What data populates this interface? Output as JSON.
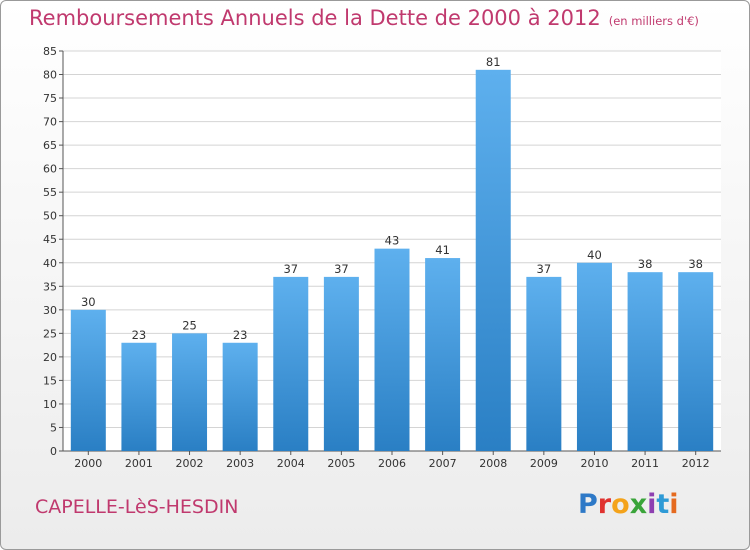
{
  "header": {
    "title": "Remboursements Annuels de la Dette de 2000 à 2012",
    "unit": "(en milliers d'€)"
  },
  "footer": {
    "commune": "CAPELLE-LèS-HESDIN",
    "logo": "Proxiti"
  },
  "chart_data": {
    "type": "bar",
    "title": "Remboursements Annuels de la Dette de 2000 à 2012",
    "subtitle": "(en milliers d'€)",
    "xlabel": "",
    "ylabel": "",
    "categories": [
      "2000",
      "2001",
      "2002",
      "2003",
      "2004",
      "2005",
      "2006",
      "2007",
      "2008",
      "2009",
      "2010",
      "2011",
      "2012"
    ],
    "values": [
      30,
      23,
      25,
      23,
      37,
      37,
      43,
      41,
      81,
      37,
      40,
      38,
      38
    ],
    "ylim": [
      0,
      85
    ],
    "yticks": [
      0,
      5,
      10,
      15,
      20,
      25,
      30,
      35,
      40,
      45,
      50,
      55,
      60,
      65,
      70,
      75,
      80,
      85
    ],
    "grid": true,
    "bar_color": "#4a9fe0"
  }
}
